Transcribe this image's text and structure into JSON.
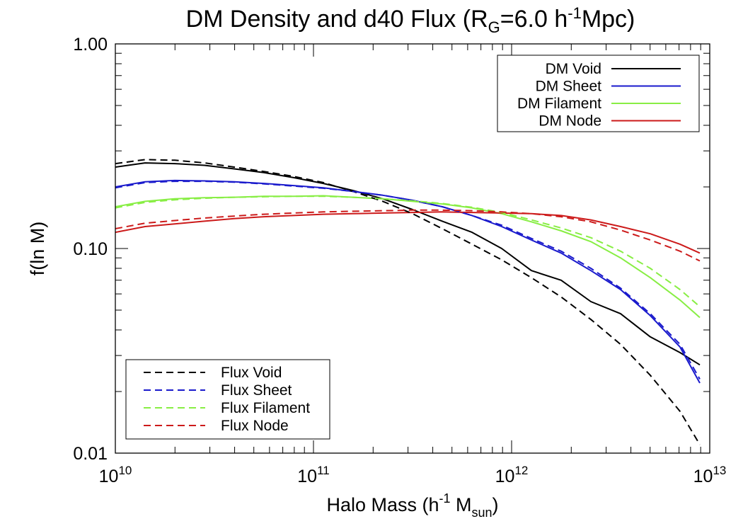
{
  "chart_data": {
    "type": "line",
    "title": {
      "main": "DM Density and d40 Flux (R",
      "sub": "G",
      "mid": "=6.0 h",
      "sup": "-1",
      "end": "Mpc)"
    },
    "xlabel": {
      "main": "Halo Mass (h",
      "sup": "-1",
      "mid": " M",
      "sub": "sun",
      "end": ")"
    },
    "ylabel": "f(ln M)",
    "xscale": "log",
    "yscale": "log",
    "xlim": [
      10000000000.0,
      10000000000000.0
    ],
    "ylim": [
      0.01,
      1.0
    ],
    "x_ticks": [
      {
        "value": 10000000000.0,
        "base": "10",
        "exp": "10"
      },
      {
        "value": 100000000000.0,
        "base": "10",
        "exp": "11"
      },
      {
        "value": 1000000000000.0,
        "base": "10",
        "exp": "12"
      },
      {
        "value": 10000000000000.0,
        "base": "10",
        "exp": "13"
      }
    ],
    "y_ticks": [
      {
        "value": 0.01,
        "label": "0.01"
      },
      {
        "value": 0.1,
        "label": "0.10"
      },
      {
        "value": 1.0,
        "label": "1.00"
      }
    ],
    "x": [
      10.0,
      10.15,
      10.3,
      10.45,
      10.6,
      10.75,
      10.9,
      11.05,
      11.2,
      11.35,
      11.5,
      11.65,
      11.8,
      11.95,
      12.1,
      12.25,
      12.4,
      12.55,
      12.7,
      12.85,
      12.95
    ],
    "series": [
      {
        "name": "DM Void",
        "group": "dm",
        "color": "#000000",
        "dash": false,
        "values": [
          0.25,
          0.262,
          0.26,
          0.255,
          0.245,
          0.235,
          0.222,
          0.208,
          0.192,
          0.175,
          0.155,
          0.136,
          0.12,
          0.1,
          0.078,
          0.07,
          0.055,
          0.048,
          0.037,
          0.031,
          0.027
        ]
      },
      {
        "name": "DM Sheet",
        "group": "dm",
        "color": "#1a1acc",
        "dash": false,
        "values": [
          0.2,
          0.212,
          0.215,
          0.214,
          0.212,
          0.208,
          0.203,
          0.198,
          0.19,
          0.182,
          0.172,
          0.16,
          0.145,
          0.128,
          0.11,
          0.095,
          0.078,
          0.063,
          0.047,
          0.033,
          0.022
        ]
      },
      {
        "name": "DM Filament",
        "group": "dm",
        "color": "#88ee44",
        "dash": false,
        "values": [
          0.16,
          0.17,
          0.175,
          0.177,
          0.178,
          0.18,
          0.18,
          0.181,
          0.178,
          0.175,
          0.17,
          0.165,
          0.158,
          0.148,
          0.135,
          0.122,
          0.108,
          0.09,
          0.072,
          0.056,
          0.046
        ]
      },
      {
        "name": "DM Node",
        "group": "dm",
        "color": "#cc1a1a",
        "dash": false,
        "values": [
          0.12,
          0.128,
          0.132,
          0.136,
          0.14,
          0.143,
          0.145,
          0.147,
          0.148,
          0.149,
          0.15,
          0.151,
          0.15,
          0.149,
          0.148,
          0.145,
          0.138,
          0.128,
          0.118,
          0.105,
          0.095
        ]
      },
      {
        "name": "Flux Void",
        "group": "flux",
        "color": "#000000",
        "dash": true,
        "values": [
          0.26,
          0.272,
          0.27,
          0.262,
          0.25,
          0.238,
          0.225,
          0.21,
          0.19,
          0.17,
          0.148,
          0.125,
          0.105,
          0.088,
          0.072,
          0.058,
          0.045,
          0.034,
          0.024,
          0.016,
          0.011
        ]
      },
      {
        "name": "Flux Sheet",
        "group": "flux",
        "color": "#1a1acc",
        "dash": true,
        "values": [
          0.198,
          0.21,
          0.213,
          0.213,
          0.211,
          0.207,
          0.202,
          0.197,
          0.19,
          0.182,
          0.172,
          0.16,
          0.145,
          0.13,
          0.112,
          0.097,
          0.08,
          0.064,
          0.048,
          0.034,
          0.023
        ]
      },
      {
        "name": "Flux Filament",
        "group": "flux",
        "color": "#88ee44",
        "dash": true,
        "values": [
          0.158,
          0.168,
          0.173,
          0.176,
          0.178,
          0.179,
          0.18,
          0.18,
          0.178,
          0.175,
          0.171,
          0.166,
          0.159,
          0.15,
          0.138,
          0.126,
          0.113,
          0.097,
          0.08,
          0.063,
          0.052
        ]
      },
      {
        "name": "Flux Node",
        "group": "flux",
        "color": "#cc1a1a",
        "dash": true,
        "values": [
          0.125,
          0.133,
          0.137,
          0.141,
          0.144,
          0.147,
          0.149,
          0.151,
          0.152,
          0.153,
          0.154,
          0.154,
          0.153,
          0.151,
          0.148,
          0.143,
          0.135,
          0.123,
          0.11,
          0.097,
          0.087
        ]
      }
    ],
    "legends": [
      {
        "group": "dm",
        "placement": "top-right",
        "entries": [
          "DM Void",
          "DM Sheet",
          "DM Filament",
          "DM Node"
        ]
      },
      {
        "group": "flux",
        "placement": "bottom-left",
        "entries": [
          "Flux Void",
          "Flux Sheet",
          "Flux Filament",
          "Flux Node"
        ]
      }
    ],
    "grid": false
  }
}
